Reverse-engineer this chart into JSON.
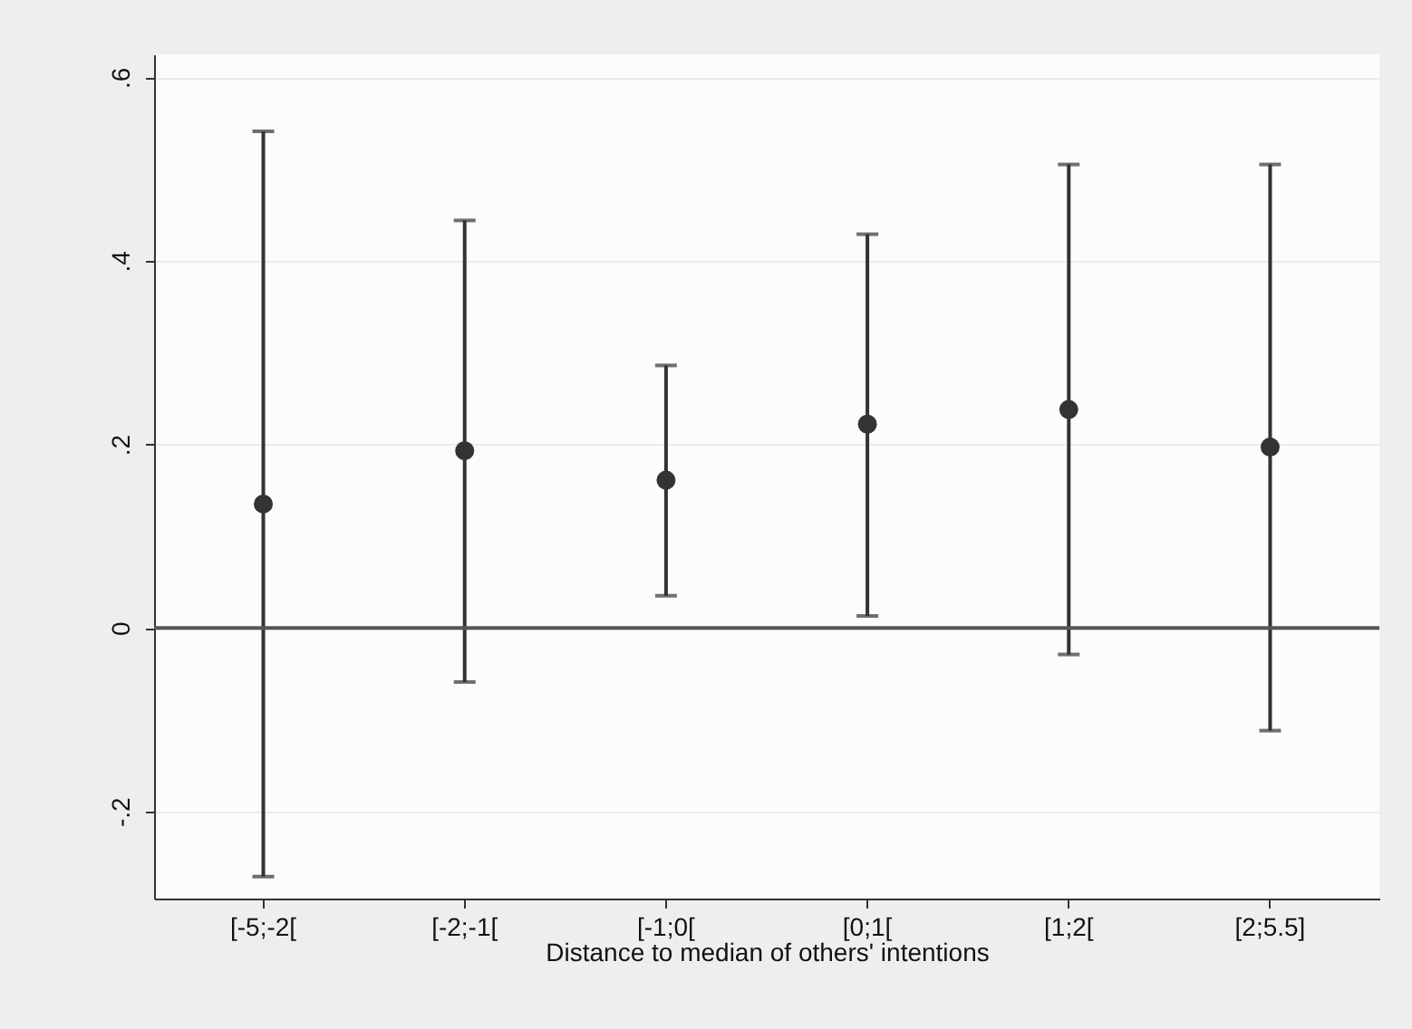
{
  "chart_data": {
    "type": "scatter",
    "xlabel": "Distance to median of others' intentions",
    "categories": [
      "[-5;-2[",
      "[-2;-1[",
      "[-1;0[",
      "[0;1[",
      "[1;2[",
      "[2;5.5]"
    ],
    "series": [
      {
        "color": "#333333",
        "values": [
          0.135,
          0.193,
          0.161,
          0.222,
          0.238,
          0.197
        ],
        "errors": [
          [
            -0.271,
            0.541
          ],
          [
            -0.059,
            0.444
          ],
          [
            0.035,
            0.286
          ],
          [
            0.013,
            0.429
          ],
          [
            -0.029,
            0.505
          ],
          [
            -0.112,
            0.505
          ]
        ]
      }
    ],
    "ylim": [
      -0.295,
      0.625
    ],
    "yticks": [
      {
        "value": -0.2,
        "label": "-.2"
      },
      0,
      {
        "value": 0.2,
        "label": ".2"
      },
      {
        "value": 0.4,
        "label": ".4"
      },
      {
        "value": 0.6,
        "label": ".6"
      }
    ],
    "ref_lines": [
      {
        "axis": "y",
        "value": 0,
        "color": "#555555"
      }
    ],
    "grid": "y",
    "marker": "circle"
  }
}
